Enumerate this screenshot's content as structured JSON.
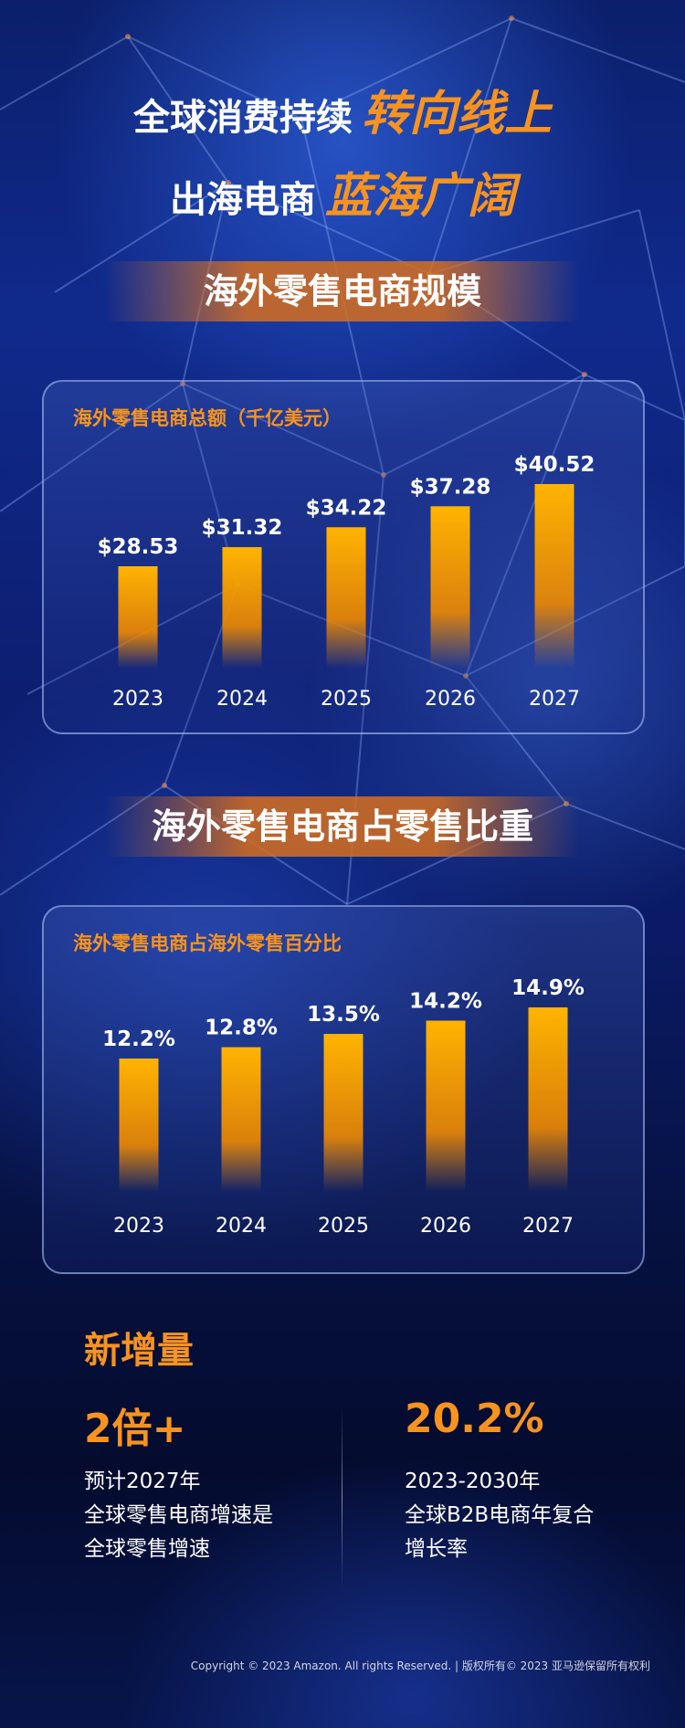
{
  "headline": {
    "line1_plain": "全球消费持续",
    "line1_accent": "转向线上",
    "line2_plain": "出海电商",
    "line2_accent": "蓝海广阔"
  },
  "section1": {
    "banner": "海外零售电商规模",
    "card_title": "海外零售电商总额（千亿美元）"
  },
  "section2": {
    "banner": "海外零售电商占零售比重",
    "card_title": "海外零售电商占海外零售百分比"
  },
  "chart_data": [
    {
      "type": "bar",
      "title": "海外零售电商总额（千亿美元）",
      "categories": [
        "2023",
        "2024",
        "2025",
        "2026",
        "2027"
      ],
      "values": [
        28.53,
        31.32,
        34.22,
        37.28,
        40.52
      ],
      "labels": [
        "$28.53",
        "$31.32",
        "$34.22",
        "$37.28",
        "$40.52"
      ],
      "xlabel": "",
      "ylabel": "",
      "bar_color": "#ffb400"
    },
    {
      "type": "bar",
      "title": "海外零售电商占海外零售百分比",
      "categories": [
        "2023",
        "2024",
        "2025",
        "2026",
        "2027"
      ],
      "values": [
        12.2,
        12.8,
        13.5,
        14.2,
        14.9
      ],
      "labels": [
        "12.2%",
        "12.8%",
        "13.5%",
        "14.2%",
        "14.9%"
      ],
      "xlabel": "",
      "ylabel": "",
      "bar_color": "#ffb400"
    }
  ],
  "stats": {
    "title": "新增量",
    "left": {
      "value": "2倍+",
      "desc": "预计2027年\n全球零售电商增速是\n全球零售增速"
    },
    "right": {
      "value": "20.2%",
      "desc": "2023-2030年\n全球B2B电商年复合\n增长率"
    }
  },
  "footer": "Copyright © 2023 Amazon. All rights Reserved.  |  版权所有© 2023 亚马逊保留所有权利",
  "colors": {
    "accent": "#f7931e",
    "background": "#0d1f73"
  }
}
